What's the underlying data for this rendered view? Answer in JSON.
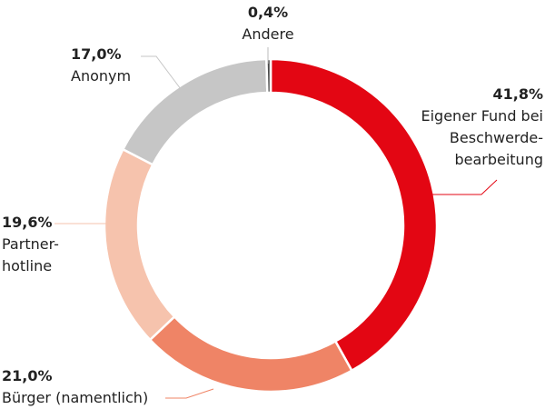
{
  "chart_data": {
    "type": "donut",
    "categories": [
      "Eigener Fund bei\nBeschwerde-\nbearbeitung",
      "Bürger (namentlich)",
      "Partner-\nhotline",
      "Anonym",
      "Andere"
    ],
    "values": [
      41.8,
      21.0,
      19.6,
      17.0,
      0.4
    ],
    "value_labels": [
      "41,8%",
      "21,0%",
      "19,6%",
      "17,0%",
      "0,4%"
    ],
    "colors": [
      "#e30613",
      "#ef8466",
      "#f6c3ad",
      "#c6c6c6",
      "#4a4a4a"
    ]
  }
}
